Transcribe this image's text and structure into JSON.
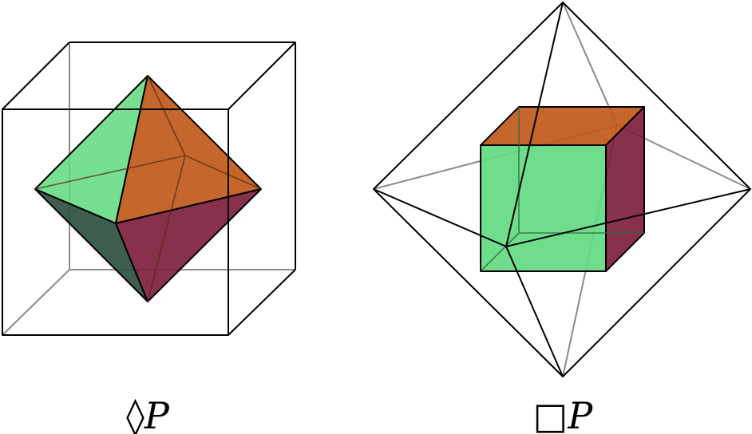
{
  "captions": {
    "left": {
      "symbol": "◊",
      "letter": "P"
    },
    "right": {
      "symbol": "□",
      "letter": "P"
    }
  },
  "colors": {
    "green": "#5fd97e",
    "orange": "#c05a1a",
    "dark_red": "#7a1b3a",
    "dark_green": "#2f5040",
    "edge": "#000000",
    "hidden_edge": "#8a8a8a"
  }
}
